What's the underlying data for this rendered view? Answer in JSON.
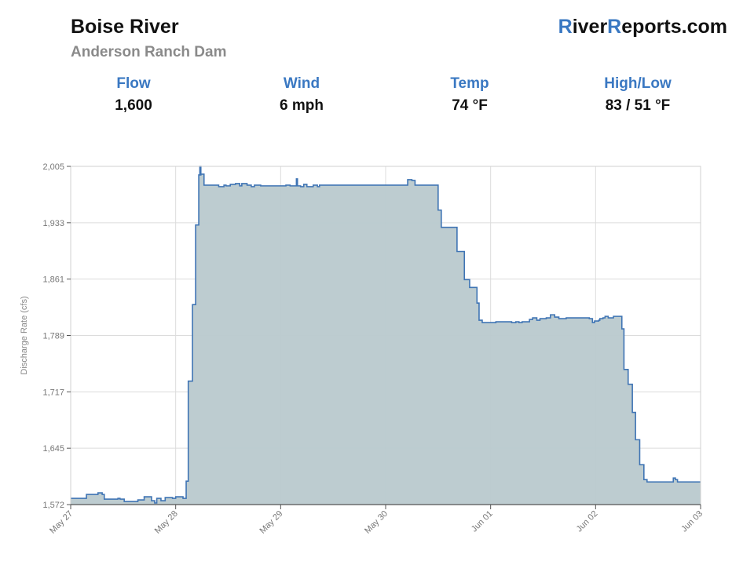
{
  "header": {
    "title": "Boise River",
    "subtitle": "Anderson Ranch Dam",
    "brand_r1": "R",
    "brand_mid": "iver",
    "brand_r2": "R",
    "brand_end": "eports.com"
  },
  "stats": [
    {
      "label": "Flow",
      "value": "1,600"
    },
    {
      "label": "Wind",
      "value": "6 mph"
    },
    {
      "label": "Temp",
      "value": "74 °F"
    },
    {
      "label": "High/Low",
      "value": "83 / 51 °F"
    }
  ],
  "colors": {
    "accent": "#3a78c2",
    "line": "#3f74b4",
    "fill": "#b9c9ce",
    "grid": "#dcdcdc"
  },
  "chart_data": {
    "type": "area",
    "title": "",
    "xlabel": "",
    "ylabel": "Discharge Rate (cfs)",
    "ylim": [
      1572,
      2005
    ],
    "yticks": [
      "1,572",
      "1,645",
      "1,717",
      "1,789",
      "1,861",
      "1,933",
      "2,005"
    ],
    "xticks": [
      "May 27",
      "May 28",
      "May 29",
      "May 30",
      "Jun 01",
      "Jun 02",
      "Jun 03"
    ],
    "xlim": [
      0,
      6
    ],
    "grid": true,
    "series": [
      {
        "x": [
          0,
          0.12,
          0.15,
          0.26,
          0.3,
          0.32,
          0.45,
          0.47,
          0.51,
          0.64,
          0.7,
          0.77,
          0.8,
          0.82,
          0.86,
          0.9,
          0.97,
          1.0,
          1.07,
          1.1,
          1.12,
          1.16,
          1.19,
          1.22,
          1.24,
          1.23,
          1.27,
          1.41,
          1.46,
          1.48,
          1.52,
          1.57,
          1.61,
          1.63,
          1.68,
          1.72,
          1.75,
          1.81,
          2.01,
          2.05,
          2.09,
          2.15,
          2.16,
          2.19,
          2.22,
          2.25,
          2.31,
          2.35,
          2.37,
          3.15,
          3.21,
          3.25,
          3.28,
          3.33,
          3.47,
          3.5,
          3.53,
          3.68,
          3.75,
          3.8,
          3.87,
          3.89,
          3.92,
          3.95,
          4.0,
          4.05,
          4.15,
          4.2,
          4.24,
          4.27,
          4.3,
          4.37,
          4.4,
          4.44,
          4.47,
          4.53,
          4.57,
          4.61,
          4.65,
          4.72,
          4.85,
          4.91,
          4.94,
          4.97,
          4.99,
          5.03,
          5.04,
          5.07,
          5.09,
          5.12,
          5.17,
          5.22,
          5.25,
          5.27,
          5.31,
          5.35,
          5.38,
          5.42,
          5.46,
          5.49,
          5.56,
          5.7,
          5.74,
          5.76,
          5.78,
          6.0
        ],
        "y": [
          1580,
          1580,
          1585,
          1587,
          1585,
          1579,
          1580,
          1579,
          1576,
          1578,
          1582,
          1577,
          1574,
          1580,
          1577,
          1581,
          1580,
          1582,
          1580,
          1602,
          1730,
          1828,
          1930,
          1994,
          2005,
          1995,
          1981,
          1979,
          1981,
          1980,
          1982,
          1983,
          1980,
          1983,
          1981,
          1979,
          1981,
          1980,
          1980,
          1981,
          1980,
          1989,
          1980,
          1979,
          1982,
          1979,
          1981,
          1979,
          1981,
          1981,
          1988,
          1987,
          1981,
          1981,
          1981,
          1949,
          1927,
          1896,
          1860,
          1850,
          1830,
          1808,
          1805,
          1805,
          1805,
          1806,
          1806,
          1805,
          1806,
          1805,
          1806,
          1809,
          1811,
          1808,
          1810,
          1811,
          1815,
          1812,
          1810,
          1811,
          1811,
          1811,
          1810,
          1805,
          1807,
          1808,
          1810,
          1811,
          1813,
          1811,
          1813,
          1813,
          1797,
          1745,
          1726,
          1690,
          1655,
          1623,
          1604,
          1601,
          1601,
          1601,
          1606,
          1604,
          1601,
          1601
        ]
      }
    ]
  }
}
